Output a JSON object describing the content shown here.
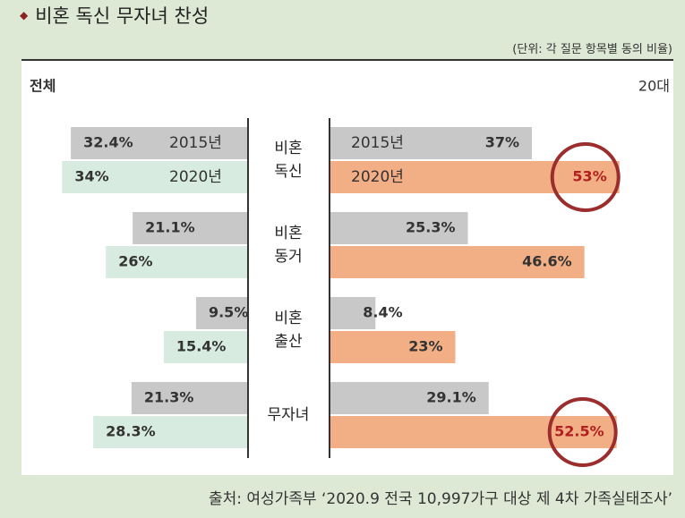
{
  "title": "비혼 독신 무자녀 찬성",
  "unit_note": "(단위: 각 질문 항목별 동의 비율)",
  "source": "출처: 여성가족부 ‘2020.9 전국 10,997가구 대상 제 4차 가족실태조사’",
  "colors": {
    "left_2015": "#c8c8c8",
    "left_2020": "#d7ebe0",
    "right_2015": "#c8c8c8",
    "right_2020": "#f2ae84",
    "highlight_circle": "#9b2d2d",
    "highlight_text": "#b02020",
    "background": "#dde8d5"
  },
  "chart_data": {
    "type": "bar",
    "orientation": "horizontal-butterfly",
    "left_label": "전체",
    "right_label": "20대",
    "year_labels": [
      "2015년",
      "2020년"
    ],
    "categories": [
      "비혼\n독신",
      "비혼\n동거",
      "비혼\n출산",
      "무자녀"
    ],
    "series": [
      {
        "side": "전체",
        "year": "2015년",
        "values": [
          32.4,
          21.1,
          9.5,
          21.3
        ],
        "labels": [
          "32.4%",
          "21.1%",
          "9.5%",
          "21.3%"
        ]
      },
      {
        "side": "전체",
        "year": "2020년",
        "values": [
          34,
          26,
          15.4,
          28.3
        ],
        "labels": [
          "34%",
          "26%",
          "15.4%",
          "28.3%"
        ]
      },
      {
        "side": "20대",
        "year": "2015년",
        "values": [
          37,
          25.3,
          8.4,
          29.1
        ],
        "labels": [
          "37%",
          "25.3%",
          "8.4%",
          "29.1%"
        ]
      },
      {
        "side": "20대",
        "year": "2020년",
        "values": [
          53,
          46.6,
          23,
          52.5
        ],
        "labels": [
          "53%",
          "46.6%",
          "23%",
          "52.5%"
        ]
      }
    ],
    "highlighted": [
      {
        "side": "20대",
        "year": "2020년",
        "category_index": 0
      },
      {
        "side": "20대",
        "year": "2020년",
        "category_index": 3
      }
    ],
    "xlim": [
      0,
      55
    ]
  }
}
